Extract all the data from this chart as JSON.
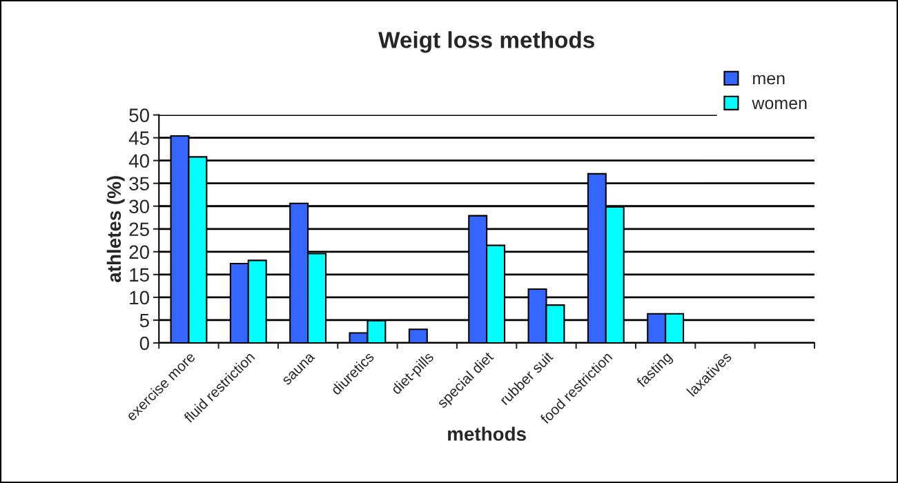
{
  "chart_data": {
    "type": "bar",
    "title": "Weigt loss methods",
    "xlabel": "methods",
    "ylabel": "athletes (%)",
    "categories": [
      "exercise more",
      "fluid restriction",
      "sauna",
      "diuretics",
      "diet-pills",
      "special diet",
      "rubber suit",
      "food restriction",
      "fasting",
      "laxatives",
      null
    ],
    "series": [
      {
        "name": "men",
        "color": "#3366ff",
        "values": [
          45.4,
          17.4,
          30.6,
          2.2,
          3.0,
          27.9,
          11.8,
          37.1,
          6.4,
          null,
          null
        ]
      },
      {
        "name": "women",
        "color": "#00ffff",
        "values": [
          40.8,
          18.1,
          19.6,
          4.9,
          null,
          21.4,
          8.3,
          29.8,
          6.4,
          null,
          null
        ]
      }
    ],
    "ylim": [
      0,
      50
    ],
    "yticks": [
      0,
      5,
      10,
      15,
      20,
      25,
      30,
      35,
      40,
      45,
      50
    ],
    "grid": "y",
    "legend": "top right"
  }
}
